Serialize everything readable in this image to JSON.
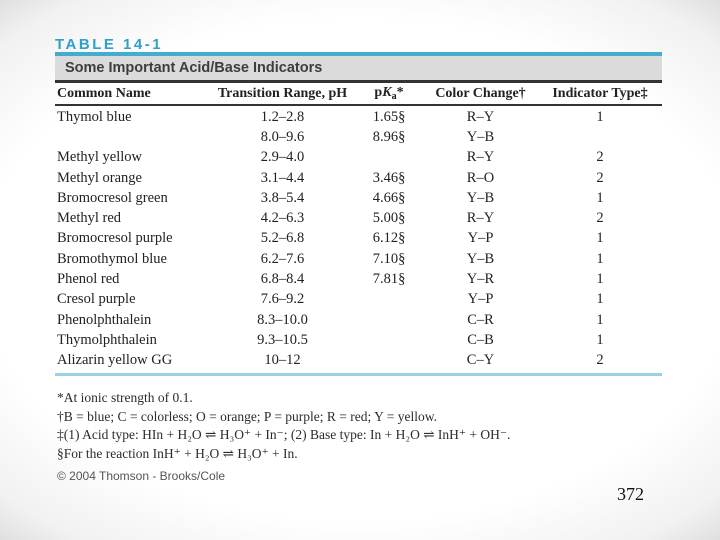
{
  "colors": {
    "accent_teal": "#2fa0c6",
    "teal_rule": "#45accf",
    "teal_light_rule": "#9bd1e5",
    "title_bar_gray": "#dbdbdb",
    "rule_dark": "#333333"
  },
  "table": {
    "label": "TABLE 14-1",
    "title": "Some Important Acid/Base Indicators",
    "columns": [
      "Common Name",
      "Transition Range, pH",
      {
        "prefix": "p",
        "symbol": "K",
        "sub": "a",
        "suffix": "*"
      },
      "Color Change†",
      "Indicator Type‡"
    ],
    "rows": [
      [
        "Thymol blue",
        "1.2–2.8",
        "1.65§",
        "R–Y",
        "1"
      ],
      [
        "",
        "8.0–9.6",
        "8.96§",
        "Y–B",
        ""
      ],
      [
        "Methyl yellow",
        "2.9–4.0",
        "",
        "R–Y",
        "2"
      ],
      [
        "Methyl orange",
        "3.1–4.4",
        "3.46§",
        "R–O",
        "2"
      ],
      [
        "Bromocresol green",
        "3.8–5.4",
        "4.66§",
        "Y–B",
        "1"
      ],
      [
        "Methyl red",
        "4.2–6.3",
        "5.00§",
        "R–Y",
        "2"
      ],
      [
        "Bromocresol purple",
        "5.2–6.8",
        "6.12§",
        "Y–P",
        "1"
      ],
      [
        "Bromothymol blue",
        "6.2–7.6",
        "7.10§",
        "Y–B",
        "1"
      ],
      [
        "Phenol red",
        "6.8–8.4",
        "7.81§",
        "Y–R",
        "1"
      ],
      [
        "Cresol purple",
        "7.6–9.2",
        "",
        "Y–P",
        "1"
      ],
      [
        "Phenolphthalein",
        "8.3–10.0",
        "",
        "C–R",
        "1"
      ],
      [
        "Thymolphthalein",
        "9.3–10.5",
        "",
        "C–B",
        "1"
      ],
      [
        "Alizarin yellow GG",
        "10–12",
        "",
        "C–Y",
        "2"
      ]
    ],
    "footnotes": [
      "*At ionic strength of 0.1.",
      "†B = blue; C = colorless; O = orange; P = purple; R = red; Y = yellow.",
      "‡(1) Acid type: HIn + H₂O ⇌ H₃O⁺ + In⁻; (2) Base type: In + H₂O ⇌ InH⁺ + OH⁻.",
      "§For the reaction InH⁺ + H₂O ⇌ H₃O⁺ + In."
    ]
  },
  "copyright": "© 2004 Thomson - Brooks/Cole",
  "page": {
    "number": "372"
  }
}
